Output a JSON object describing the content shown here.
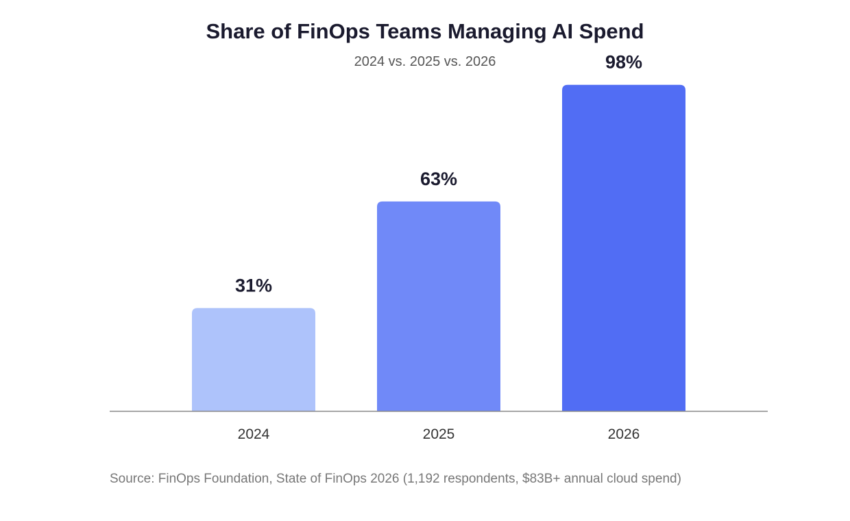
{
  "chart_data": {
    "type": "bar",
    "title": "Share of FinOps Teams Managing AI Spend",
    "subtitle": "2024 vs. 2025 vs. 2026",
    "categories": [
      "2024",
      "2025",
      "2026"
    ],
    "values": [
      31,
      63,
      98
    ],
    "value_labels": [
      "31%",
      "63%",
      "98%"
    ],
    "ylim": [
      0,
      100
    ],
    "grid": false,
    "legend": "none",
    "colors": [
      "#aec3fb",
      "#7089f8",
      "#516df4"
    ],
    "source": "Source: FinOps Foundation, State of FinOps 2026 (1,192 respondents, $83B+ annual cloud spend)"
  },
  "colors": {
    "title": "#1a1a2e",
    "axis": "#888888"
  }
}
